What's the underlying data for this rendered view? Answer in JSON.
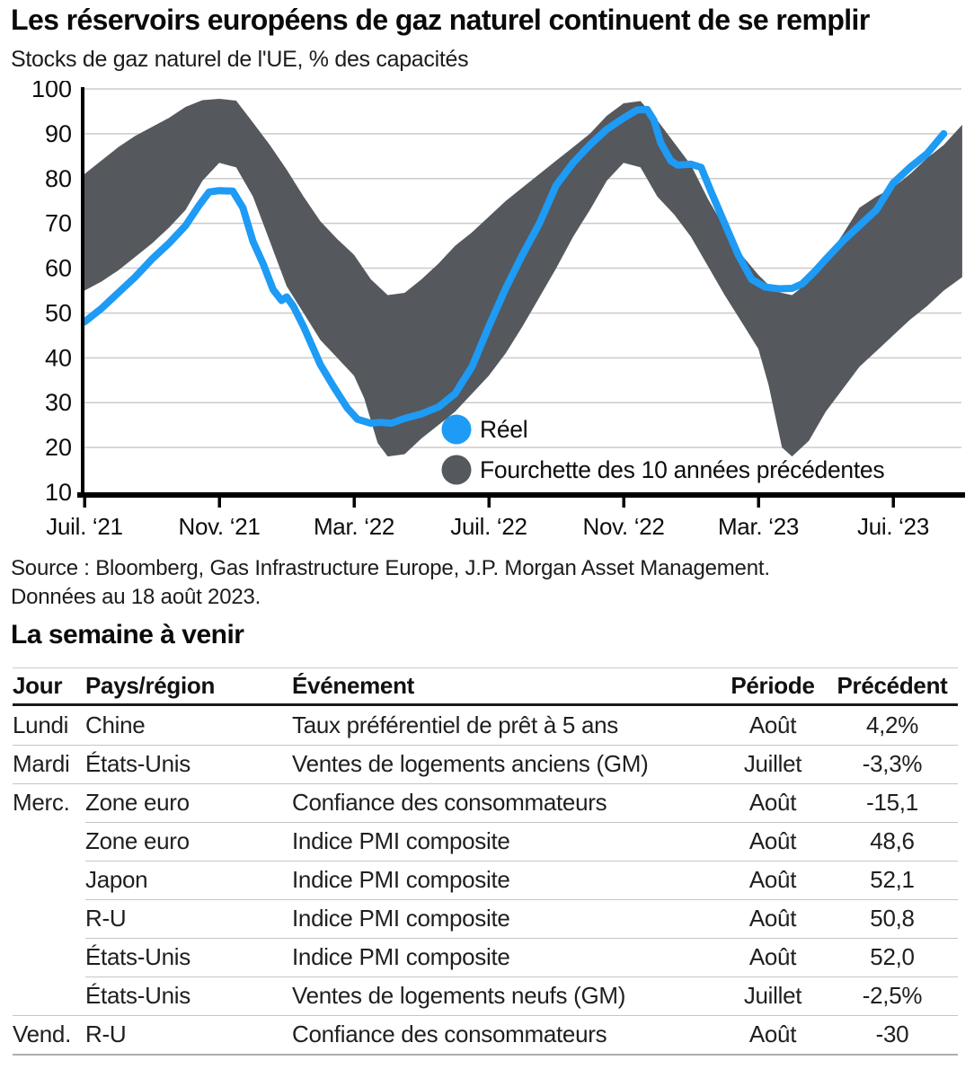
{
  "chart_data": {
    "type": "line",
    "title": "Les réservoirs européens de gaz naturel continuent de se remplir",
    "subtitle": "Stocks de gaz naturel de l'UE, % des capacités",
    "xlabel": "",
    "ylabel": "% des capacités",
    "x_unit": "months since Jul 2021",
    "xlim": [
      0,
      26.05
    ],
    "ylim": [
      10,
      100
    ],
    "grid": "horizontal",
    "colors": {
      "line": "#1d9bf5",
      "band": "#55585d",
      "gridline": "#cbcbcb",
      "axis": "#000000",
      "text": "#1c1c1c"
    },
    "y_ticks": [
      100,
      90,
      80,
      70,
      60,
      50,
      40,
      30,
      20,
      10
    ],
    "x_ticks": [
      {
        "t": 0,
        "label": "Juil. ‘21"
      },
      {
        "t": 4,
        "label": "Nov. ‘21"
      },
      {
        "t": 8,
        "label": "Mar. ‘22"
      },
      {
        "t": 12,
        "label": "Juil. ‘22"
      },
      {
        "t": 16,
        "label": "Nov. ‘22"
      },
      {
        "t": 20,
        "label": "Mar. ‘23"
      },
      {
        "t": 24,
        "label": "Jui. ‘23"
      }
    ],
    "series": [
      {
        "name": "Réel",
        "type": "line",
        "color": "#1d9bf5",
        "points": [
          [
            0,
            48
          ],
          [
            0.5,
            51
          ],
          [
            1,
            54.5
          ],
          [
            1.5,
            58
          ],
          [
            2,
            62
          ],
          [
            2.5,
            65.5
          ],
          [
            3,
            69.5
          ],
          [
            3.4,
            74
          ],
          [
            3.7,
            77
          ],
          [
            4,
            77.3
          ],
          [
            4.4,
            77.2
          ],
          [
            4.7,
            73.5
          ],
          [
            5,
            66
          ],
          [
            5.3,
            61
          ],
          [
            5.6,
            55.2
          ],
          [
            5.85,
            52.8
          ],
          [
            6.0,
            53.6
          ],
          [
            6.2,
            51.5
          ],
          [
            6.5,
            47
          ],
          [
            7,
            38.5
          ],
          [
            7.4,
            33.5
          ],
          [
            7.8,
            28.8
          ],
          [
            8.1,
            26.3
          ],
          [
            8.5,
            25.4
          ],
          [
            8.8,
            25.6
          ],
          [
            9.1,
            25.4
          ],
          [
            9.5,
            26.5
          ],
          [
            10,
            27.5
          ],
          [
            10.5,
            29
          ],
          [
            11,
            32
          ],
          [
            11.5,
            38
          ],
          [
            12,
            47
          ],
          [
            12.5,
            55.5
          ],
          [
            13,
            63
          ],
          [
            13.5,
            70
          ],
          [
            14,
            78.5
          ],
          [
            14.5,
            83.5
          ],
          [
            15,
            87.5
          ],
          [
            15.5,
            91
          ],
          [
            16,
            93.5
          ],
          [
            16.4,
            95.3
          ],
          [
            16.7,
            95.4
          ],
          [
            16.9,
            93
          ],
          [
            17.1,
            88
          ],
          [
            17.4,
            84
          ],
          [
            17.6,
            83
          ],
          [
            18,
            83.2
          ],
          [
            18.3,
            82.5
          ],
          [
            18.6,
            77
          ],
          [
            19,
            70
          ],
          [
            19.4,
            63
          ],
          [
            19.8,
            57.5
          ],
          [
            20.2,
            55.8
          ],
          [
            20.6,
            55.4
          ],
          [
            21,
            55.5
          ],
          [
            21.3,
            56.5
          ],
          [
            21.7,
            59.5
          ],
          [
            22,
            62
          ],
          [
            22.5,
            66
          ],
          [
            23,
            69.5
          ],
          [
            23.5,
            73
          ],
          [
            24,
            79
          ],
          [
            24.5,
            82.5
          ],
          [
            25,
            85.5
          ],
          [
            25.5,
            90
          ]
        ]
      },
      {
        "name": "Fourchette des 10 années précédentes",
        "type": "band",
        "color": "#55585d",
        "upper": [
          [
            0,
            81
          ],
          [
            0.5,
            84
          ],
          [
            1,
            87
          ],
          [
            1.5,
            89.5
          ],
          [
            2,
            91.5
          ],
          [
            2.5,
            93.5
          ],
          [
            3,
            96
          ],
          [
            3.5,
            97.5
          ],
          [
            4,
            97.8
          ],
          [
            4.5,
            97.4
          ],
          [
            5,
            92.5
          ],
          [
            5.5,
            87.5
          ],
          [
            6,
            82
          ],
          [
            6.5,
            76
          ],
          [
            7,
            70.5
          ],
          [
            7.5,
            66.5
          ],
          [
            8,
            63
          ],
          [
            8.5,
            57.5
          ],
          [
            9,
            54
          ],
          [
            9.5,
            54.5
          ],
          [
            10,
            57.5
          ],
          [
            10.5,
            61
          ],
          [
            11,
            65
          ],
          [
            11.5,
            68
          ],
          [
            12,
            71.5
          ],
          [
            12.5,
            75
          ],
          [
            13,
            78
          ],
          [
            13.5,
            81
          ],
          [
            14,
            84
          ],
          [
            14.5,
            87
          ],
          [
            15,
            90
          ],
          [
            15.5,
            94
          ],
          [
            16,
            96.8
          ],
          [
            16.5,
            97.3
          ],
          [
            17,
            93
          ],
          [
            17.5,
            88
          ],
          [
            18,
            83
          ],
          [
            18.5,
            75.5
          ],
          [
            19,
            69
          ],
          [
            19.5,
            63
          ],
          [
            20,
            58.5
          ],
          [
            20.5,
            54.8
          ],
          [
            21,
            54
          ],
          [
            21.5,
            57
          ],
          [
            22,
            62
          ],
          [
            22.5,
            67.5
          ],
          [
            23,
            73.5
          ],
          [
            23.5,
            76
          ],
          [
            24,
            78
          ],
          [
            24.5,
            81
          ],
          [
            25,
            84.5
          ],
          [
            25.5,
            87.5
          ],
          [
            26.05,
            92
          ]
        ],
        "lower": [
          [
            0,
            55
          ],
          [
            0.5,
            57
          ],
          [
            1,
            59.5
          ],
          [
            1.5,
            62.5
          ],
          [
            2,
            65.5
          ],
          [
            2.5,
            69
          ],
          [
            3,
            73
          ],
          [
            3.5,
            79.5
          ],
          [
            4,
            83.5
          ],
          [
            4.5,
            82.5
          ],
          [
            5,
            76
          ],
          [
            5.5,
            66
          ],
          [
            6,
            56
          ],
          [
            6.5,
            50
          ],
          [
            7,
            44
          ],
          [
            7.5,
            40
          ],
          [
            8,
            36
          ],
          [
            8.3,
            31
          ],
          [
            8.7,
            21
          ],
          [
            9,
            18
          ],
          [
            9.5,
            18.5
          ],
          [
            10,
            22
          ],
          [
            10.5,
            25
          ],
          [
            11,
            28
          ],
          [
            11.5,
            32
          ],
          [
            12,
            36
          ],
          [
            12.5,
            41
          ],
          [
            13,
            47
          ],
          [
            13.5,
            53.5
          ],
          [
            14,
            60
          ],
          [
            14.5,
            67
          ],
          [
            15,
            73
          ],
          [
            15.5,
            79.5
          ],
          [
            16,
            83.5
          ],
          [
            16.5,
            82.5
          ],
          [
            17,
            76
          ],
          [
            17.5,
            72
          ],
          [
            18,
            67
          ],
          [
            18.5,
            60.5
          ],
          [
            19,
            54
          ],
          [
            19.5,
            48
          ],
          [
            20,
            42
          ],
          [
            20.3,
            34
          ],
          [
            20.7,
            20
          ],
          [
            21,
            18
          ],
          [
            21.5,
            21.5
          ],
          [
            22,
            28
          ],
          [
            22.5,
            33
          ],
          [
            23,
            38
          ],
          [
            23.5,
            41.5
          ],
          [
            24,
            45
          ],
          [
            24.5,
            48.5
          ],
          [
            25,
            51.5
          ],
          [
            25.5,
            55
          ],
          [
            26.05,
            58
          ]
        ]
      }
    ],
    "legend": {
      "position": "inside-bottom-center",
      "entries": [
        {
          "label": "Réel",
          "swatch": "circle",
          "color": "#1d9bf5"
        },
        {
          "label": "Fourchette des 10 années précédentes",
          "swatch": "circle",
          "color": "#55585d"
        }
      ]
    }
  },
  "source": {
    "line1": "Source : Bloomberg, Gas Infrastructure Europe, J.P. Morgan Asset Management.",
    "line2": "Données au 18 août 2023."
  },
  "week_ahead": {
    "title": "La semaine à venir",
    "columns": [
      "Jour",
      "Pays/région",
      "Événement",
      "Période",
      "Précédent"
    ],
    "rows": [
      {
        "jour": "Lundi",
        "pays": "Chine",
        "evenement": "Taux préférentiel de prêt à 5 ans",
        "periode": "Août",
        "precedent": "4,2%",
        "day_start": true
      },
      {
        "jour": "Mardi",
        "pays": "États-Unis",
        "evenement": "Ventes de logements anciens (GM)",
        "periode": "Juillet",
        "precedent": "-3,3%",
        "day_start": true
      },
      {
        "jour": "Merc.",
        "pays": "Zone euro",
        "evenement": "Confiance des consommateurs",
        "periode": "Août",
        "precedent": "-15,1",
        "day_start": true
      },
      {
        "jour": "",
        "pays": "Zone euro",
        "evenement": "Indice PMI composite",
        "periode": "Août",
        "precedent": "48,6",
        "day_start": false
      },
      {
        "jour": "",
        "pays": "Japon",
        "evenement": "Indice PMI composite",
        "periode": "Août",
        "precedent": "52,1",
        "day_start": false
      },
      {
        "jour": "",
        "pays": "R-U",
        "evenement": "Indice PMI composite",
        "periode": "Août",
        "precedent": "50,8",
        "day_start": false
      },
      {
        "jour": "",
        "pays": "États-Unis",
        "evenement": "Indice PMI composite",
        "periode": "Août",
        "precedent": "52,0",
        "day_start": false
      },
      {
        "jour": "",
        "pays": "États-Unis",
        "evenement": "Ventes de logements neufs (GM)",
        "periode": "Juillet",
        "precedent": "-2,5%",
        "day_start": false
      },
      {
        "jour": "Vend.",
        "pays": "R-U",
        "evenement": "Confiance des consommateurs",
        "periode": "Août",
        "precedent": "-30",
        "day_start": true
      }
    ]
  }
}
